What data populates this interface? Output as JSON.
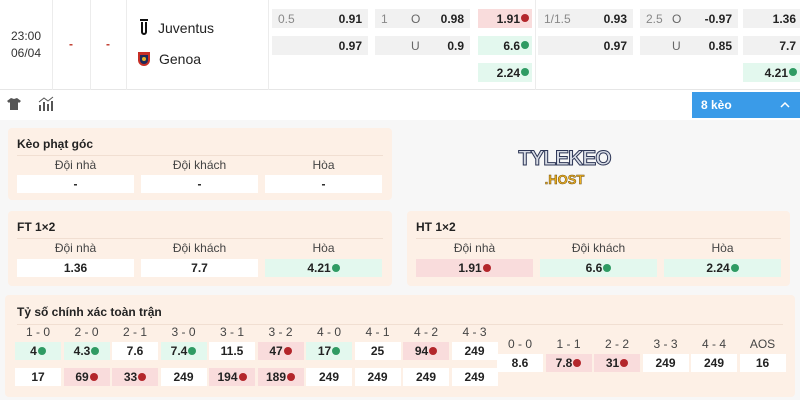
{
  "match": {
    "time": "23:00",
    "date": "06/04",
    "score_ft": "-",
    "score_ht": "-",
    "home": {
      "name": "Juventus",
      "icon": "juventus-crest-icon"
    },
    "away": {
      "name": "Genoa",
      "icon": "genoa-crest-icon"
    }
  },
  "odds": {
    "ft_handicap": {
      "line": "0.5",
      "home": "0.91",
      "away": "0.97"
    },
    "ft_ou": {
      "line": "1",
      "over_label": "O",
      "over": "0.98",
      "under_label": "U",
      "under": "0.9"
    },
    "ht_1x2": {
      "home": "1.91",
      "home_trend": "down",
      "away": "6.6",
      "away_trend": "up",
      "draw": "2.24",
      "draw_trend": "up"
    },
    "ht_handicap": {
      "line": "1/1.5",
      "home": "0.93",
      "away": "0.97"
    },
    "ht_ou": {
      "line": "2.5",
      "over_label": "O",
      "over": "-0.97",
      "under_label": "U",
      "under": "0.85"
    },
    "ft_1x2": {
      "home": "1.36",
      "away": "7.7",
      "draw": "4.21",
      "draw_trend": "up"
    }
  },
  "toolbar": {
    "jersey_icon": "jersey-icon",
    "stats_icon": "stats-icon",
    "more_label": "8 kèo",
    "accent": "#3a9be8"
  },
  "logo": {
    "text": "TYLEKEO",
    "sub": ".HOST"
  },
  "corner": {
    "title": "Kèo phạt góc",
    "labels": [
      "Đội nhà",
      "Đội khách",
      "Hòa"
    ],
    "values": [
      "-",
      "-",
      "-"
    ]
  },
  "ft": {
    "title": "FT 1×2",
    "labels": [
      "Đội nhà",
      "Đội khách",
      "Hòa"
    ],
    "values": [
      {
        "v": "1.36",
        "t": ""
      },
      {
        "v": "7.7",
        "t": ""
      },
      {
        "v": "4.21",
        "t": "up"
      }
    ]
  },
  "ht": {
    "title": "HT 1×2",
    "labels": [
      "Đội nhà",
      "Đội khách",
      "Hòa"
    ],
    "values": [
      {
        "v": "1.91",
        "t": "down"
      },
      {
        "v": "6.6",
        "t": "up"
      },
      {
        "v": "2.24",
        "t": "up"
      }
    ]
  },
  "correct_score": {
    "title": "Tỷ số chính xác toàn trận",
    "left": [
      {
        "score": "1 - 0",
        "home": {
          "v": "4",
          "t": "up"
        },
        "away": {
          "v": "17",
          "t": ""
        }
      },
      {
        "score": "2 - 0",
        "home": {
          "v": "4.3",
          "t": "up"
        },
        "away": {
          "v": "69",
          "t": "down"
        }
      },
      {
        "score": "2 - 1",
        "home": {
          "v": "7.6",
          "t": ""
        },
        "away": {
          "v": "33",
          "t": "down"
        }
      },
      {
        "score": "3 - 0",
        "home": {
          "v": "7.4",
          "t": "up"
        },
        "away": {
          "v": "249",
          "t": ""
        }
      },
      {
        "score": "3 - 1",
        "home": {
          "v": "11.5",
          "t": ""
        },
        "away": {
          "v": "194",
          "t": "down"
        }
      },
      {
        "score": "3 - 2",
        "home": {
          "v": "47",
          "t": "down"
        },
        "away": {
          "v": "189",
          "t": "down"
        }
      },
      {
        "score": "4 - 0",
        "home": {
          "v": "17",
          "t": "up"
        },
        "away": {
          "v": "249",
          "t": ""
        }
      },
      {
        "score": "4 - 1",
        "home": {
          "v": "25",
          "t": ""
        },
        "away": {
          "v": "249",
          "t": ""
        }
      },
      {
        "score": "4 - 2",
        "home": {
          "v": "94",
          "t": "down"
        },
        "away": {
          "v": "249",
          "t": ""
        }
      },
      {
        "score": "4 - 3",
        "home": {
          "v": "249",
          "t": ""
        },
        "away": {
          "v": "249",
          "t": ""
        }
      }
    ],
    "draws": [
      {
        "score": "0 - 0",
        "v": "8.6",
        "t": ""
      },
      {
        "score": "1 - 1",
        "v": "7.8",
        "t": "down"
      },
      {
        "score": "2 - 2",
        "v": "31",
        "t": "down"
      },
      {
        "score": "3 - 3",
        "v": "249",
        "t": ""
      },
      {
        "score": "4 - 4",
        "v": "249",
        "t": ""
      },
      {
        "score": "AOS",
        "v": "16",
        "t": ""
      }
    ]
  }
}
